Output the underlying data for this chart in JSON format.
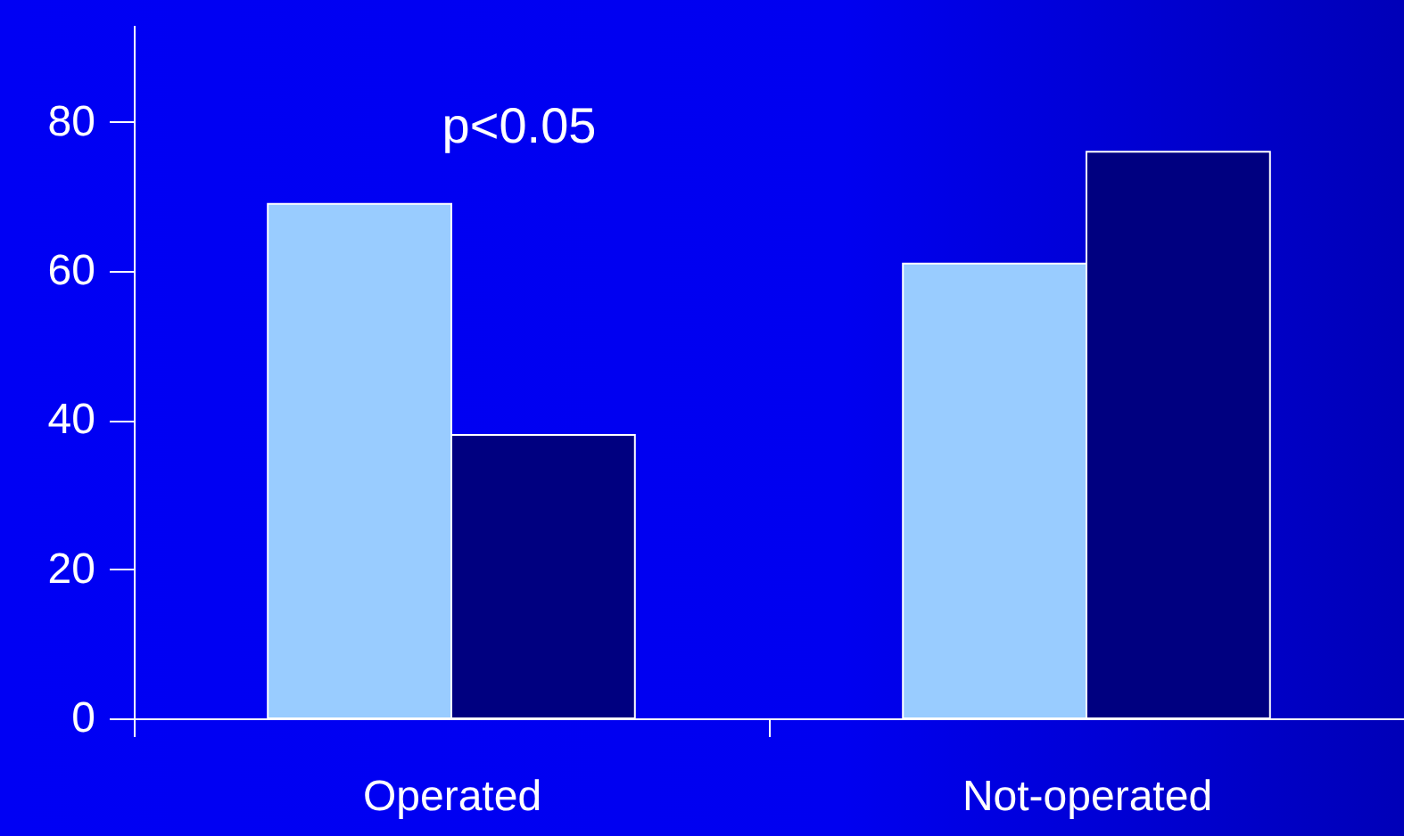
{
  "chart_data": {
    "type": "bar",
    "categories": [
      "Operated",
      "Not-operated"
    ],
    "series": [
      {
        "color": "#99ccff",
        "values": [
          69,
          61
        ]
      },
      {
        "color": "#000080",
        "values": [
          38,
          76
        ]
      }
    ],
    "ylim": [
      0,
      93
    ],
    "yticks": [
      0,
      20,
      40,
      60,
      80
    ],
    "grid": false,
    "annotations": [
      "p<0.05"
    ]
  }
}
